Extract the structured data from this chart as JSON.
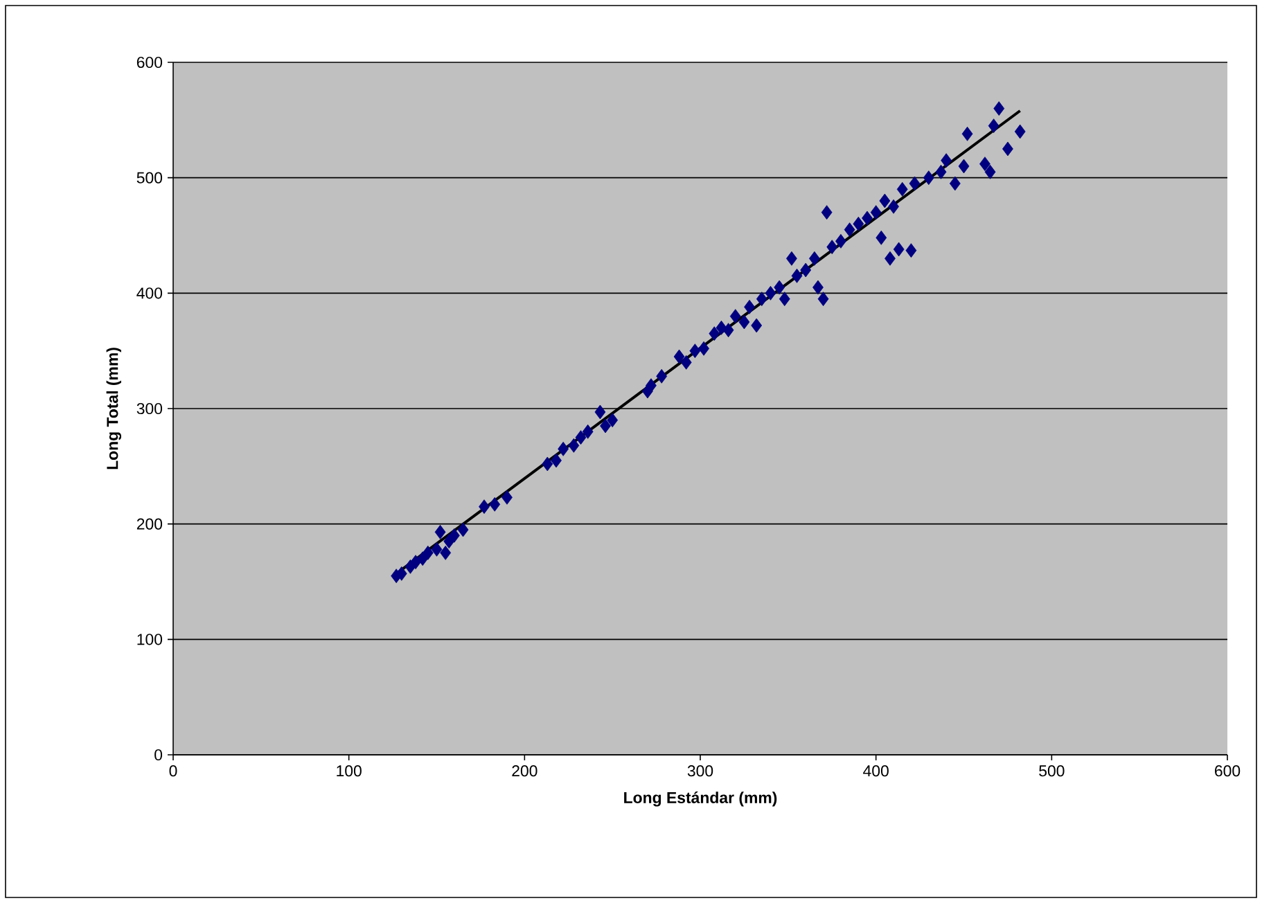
{
  "chart_data": {
    "type": "scatter",
    "xlabel": "Long Estándar (mm)",
    "ylabel": "Long Total (mm)",
    "xlim": [
      0,
      600
    ],
    "ylim": [
      0,
      600
    ],
    "xticks": [
      0,
      100,
      200,
      300,
      400,
      500,
      600
    ],
    "yticks": [
      0,
      100,
      200,
      300,
      400,
      500,
      600
    ],
    "grid": "y",
    "marker": "diamond",
    "series": [
      {
        "color": "#000080",
        "x": [
          127,
          130,
          135,
          138,
          142,
          145,
          150,
          152,
          155,
          157,
          160,
          165,
          177,
          183,
          190,
          213,
          218,
          222,
          228,
          232,
          236,
          243,
          246,
          250,
          270,
          272,
          278,
          288,
          292,
          297,
          302,
          308,
          312,
          316,
          320,
          325,
          328,
          332,
          335,
          340,
          345,
          348,
          352,
          355,
          360,
          365,
          367,
          370,
          372,
          375,
          380,
          385,
          390,
          395,
          400,
          403,
          405,
          408,
          410,
          413,
          415,
          420,
          422,
          430,
          437,
          440,
          445,
          450,
          452,
          462,
          465,
          467,
          470,
          475,
          482
        ],
        "values": [
          155,
          157,
          163,
          167,
          170,
          175,
          178,
          193,
          175,
          185,
          190,
          195,
          215,
          217,
          223,
          252,
          255,
          265,
          268,
          275,
          280,
          297,
          285,
          290,
          315,
          320,
          328,
          345,
          340,
          350,
          352,
          365,
          370,
          368,
          380,
          375,
          388,
          372,
          395,
          400,
          405,
          395,
          430,
          415,
          420,
          430,
          405,
          395,
          470,
          440,
          445,
          455,
          460,
          465,
          470,
          448,
          480,
          430,
          475,
          438,
          490,
          437,
          495,
          500,
          505,
          515,
          495,
          510,
          538,
          512,
          505,
          545,
          560,
          525,
          540
        ]
      },
      {
        "type": "line",
        "color": "#000000",
        "marker": "none",
        "line_style": "solid",
        "x": [
          127,
          482
        ],
        "values": [
          157,
          558
        ]
      }
    ]
  }
}
